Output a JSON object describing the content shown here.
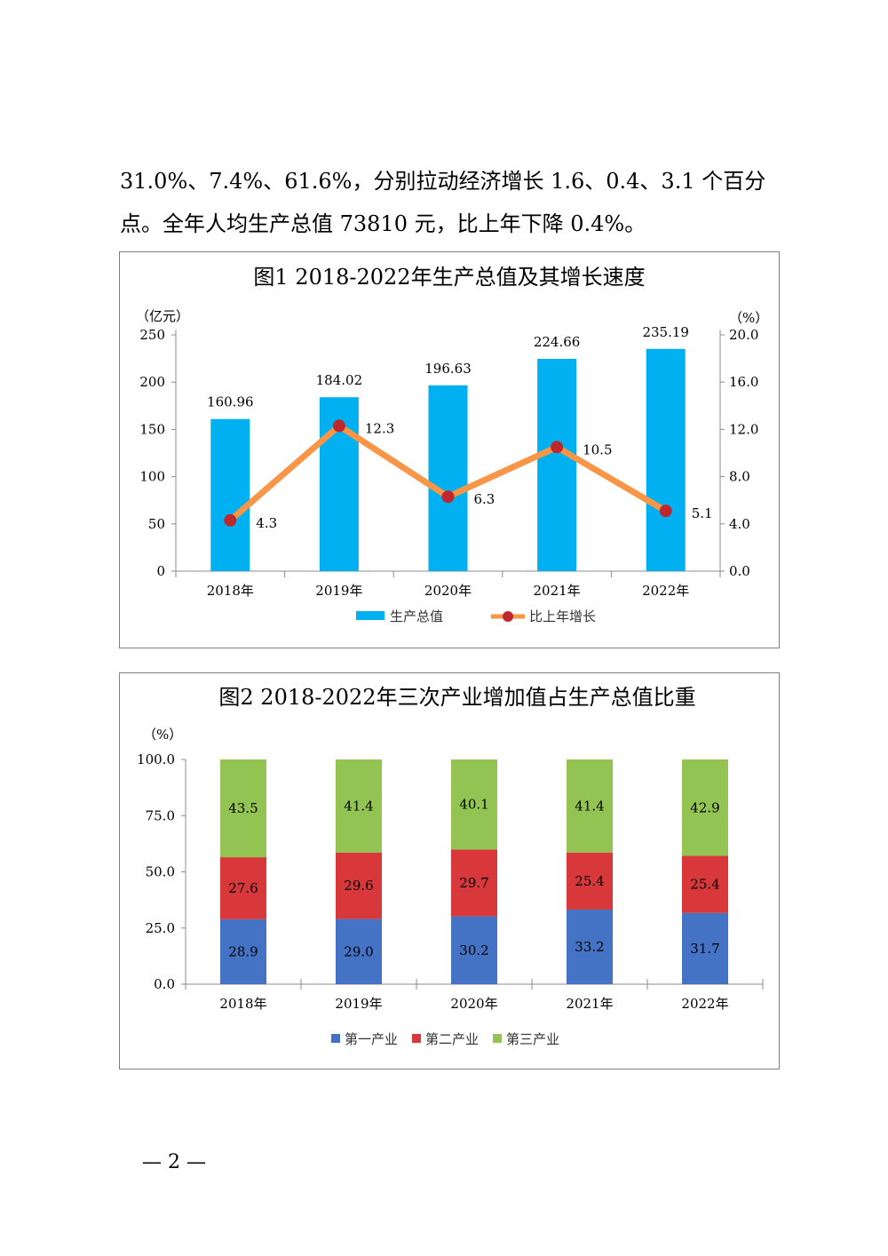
{
  "paragraph": {
    "line1": "31.0%、7.4%、61.6%，分别拉动经济增长 1.6、0.4、3.1 个百分",
    "line2": "点。全年人均生产总值 73810 元，比上年下降 0.4%。"
  },
  "page_number": "— 2 —",
  "colors": {
    "gdp": "#00b0f0",
    "growth_line": "#f79646",
    "growth_marker": "#c0272d",
    "primary": "#4472c4",
    "secondary": "#d9383a",
    "tertiary": "#92c353"
  },
  "chart_data": [
    {
      "type": "bar",
      "title": "图1   2018-2022年生产总值及其增长速度",
      "y_unit_left": "（亿元）",
      "y_unit_right": "（%）",
      "categories": [
        "2018年",
        "2019年",
        "2020年",
        "2021年",
        "2022年"
      ],
      "ylim_left": [
        0,
        250
      ],
      "yticks_left": [
        "0",
        "50",
        "100",
        "150",
        "200",
        "250"
      ],
      "ylim_right": [
        0,
        20
      ],
      "yticks_right": [
        "0.0",
        "4.0",
        "8.0",
        "12.0",
        "16.0",
        "20.0"
      ],
      "series": [
        {
          "name": "生产总值",
          "type": "bar",
          "axis": "left",
          "values": [
            160.96,
            184.02,
            196.63,
            224.66,
            235.19
          ],
          "labels": [
            "160.96",
            "184.02",
            "196.63",
            "224.66",
            "235.19"
          ]
        },
        {
          "name": "比上年增长",
          "type": "line",
          "axis": "right",
          "values": [
            4.3,
            12.3,
            6.3,
            10.5,
            5.1
          ],
          "labels": [
            "4.3",
            "12.3",
            "6.3",
            "10.5",
            "5.1"
          ]
        }
      ],
      "legend": "bottom"
    },
    {
      "type": "bar",
      "stacked": true,
      "title": "图2   2018-2022年三次产业增加值占生产总值比重",
      "y_unit": "（%）",
      "categories": [
        "2018年",
        "2019年",
        "2020年",
        "2021年",
        "2022年"
      ],
      "ylim": [
        0,
        100
      ],
      "yticks": [
        "0.0",
        "25.0",
        "50.0",
        "75.0",
        "100.0"
      ],
      "series": [
        {
          "name": "第一产业",
          "values": [
            28.9,
            29.0,
            30.2,
            33.2,
            31.7
          ],
          "labels": [
            "28.9",
            "29.0",
            "30.2",
            "33.2",
            "31.7"
          ]
        },
        {
          "name": "第二产业",
          "values": [
            27.6,
            29.6,
            29.7,
            25.4,
            25.4
          ],
          "labels": [
            "27.6",
            "29.6",
            "29.7",
            "25.4",
            "25.4"
          ]
        },
        {
          "name": "第三产业",
          "values": [
            43.5,
            41.4,
            40.1,
            41.4,
            42.9
          ],
          "labels": [
            "43.5",
            "41.4",
            "40.1",
            "41.4",
            "42.9"
          ]
        }
      ],
      "legend": "bottom"
    }
  ]
}
